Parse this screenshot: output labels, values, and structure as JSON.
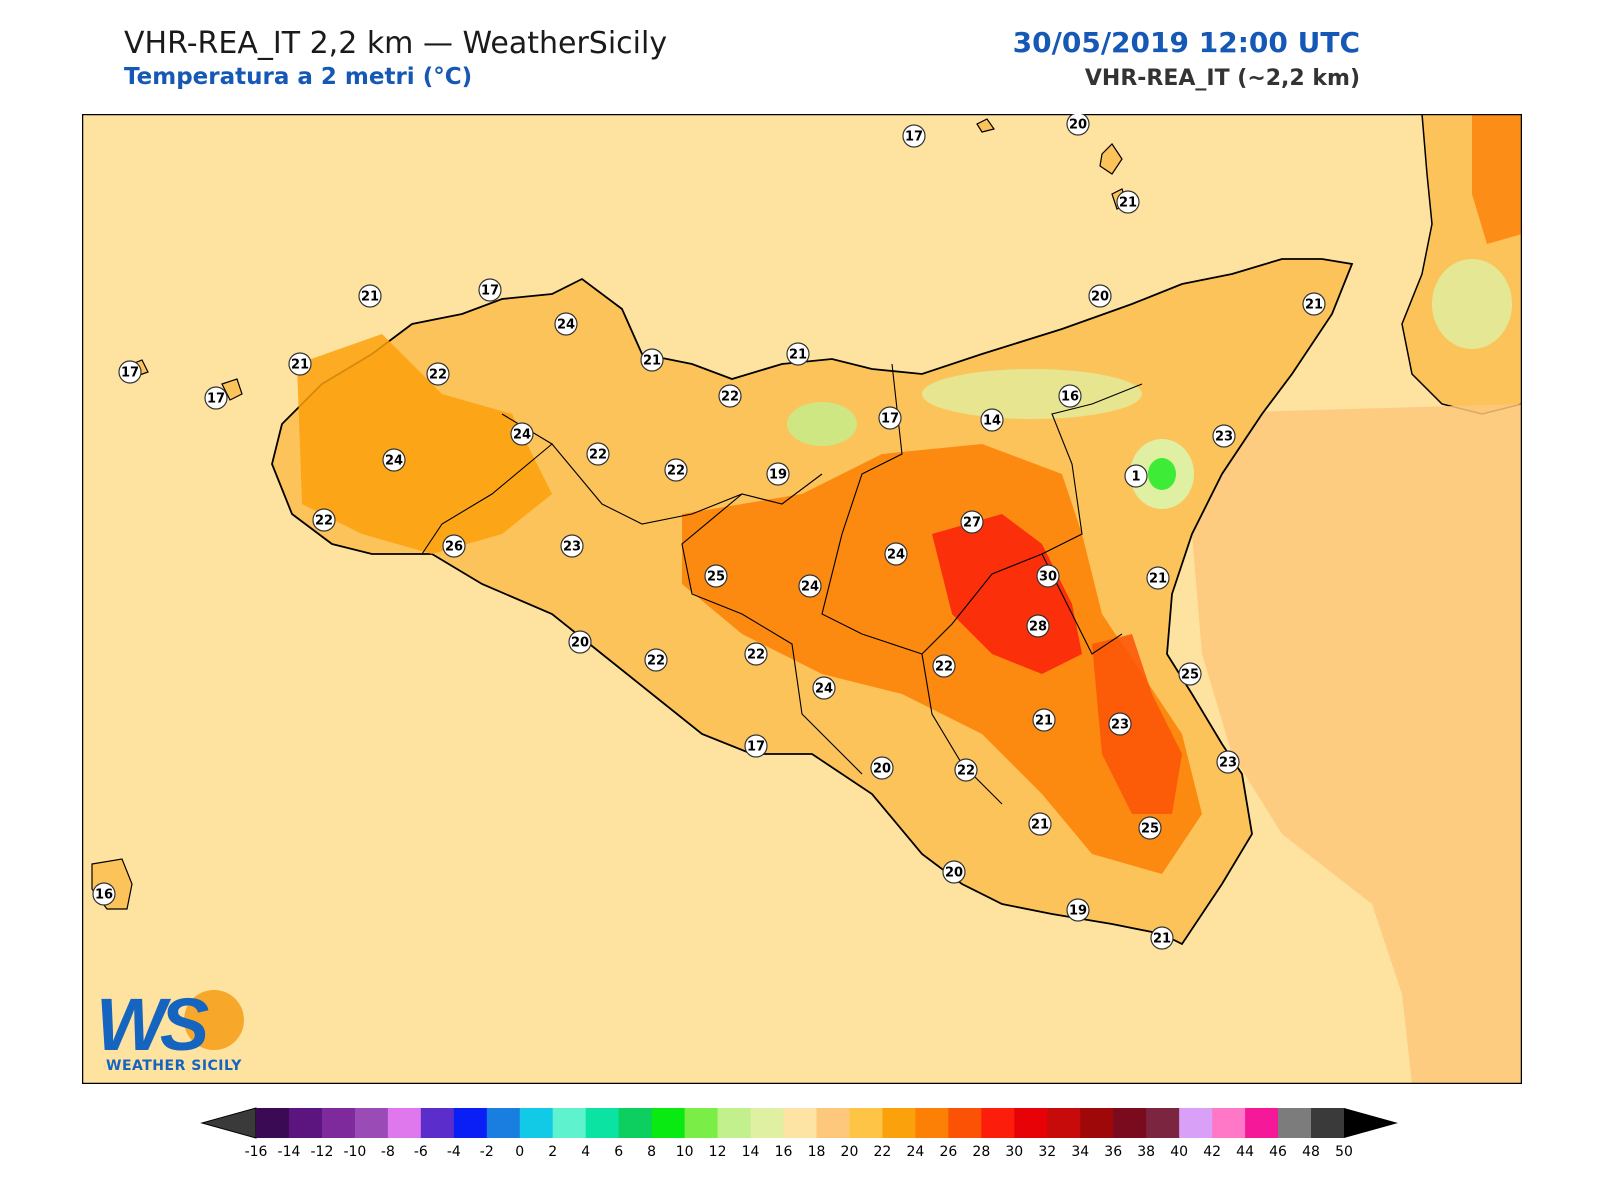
{
  "header": {
    "title": "VHR-REA_IT 2,2 km — WeatherSicily",
    "subtitle": "Temperatura a 2 metri (°C)",
    "datetime": "30/05/2019 12:00 UTC",
    "model": "VHR-REA_IT (~2,2 km)"
  },
  "logo": {
    "text": "WEATHER SICILY",
    "letters": "WS"
  },
  "colorbar": {
    "ticks": [
      "-16",
      "-14",
      "-12",
      "-10",
      "-8",
      "-6",
      "-4",
      "-2",
      "0",
      "2",
      "4",
      "6",
      "8",
      "10",
      "12",
      "14",
      "16",
      "18",
      "20",
      "22",
      "24",
      "26",
      "28",
      "30",
      "32",
      "34",
      "36",
      "38",
      "40",
      "42",
      "44",
      "46",
      "48",
      "50"
    ],
    "colors": [
      "#3b0a55",
      "#5c147f",
      "#7e2a9c",
      "#9b4bb6",
      "#df78ec",
      "#5b2ecb",
      "#0a1ff5",
      "#1a7ee0",
      "#12c9e6",
      "#5ff2cf",
      "#0be3a3",
      "#0ccf5f",
      "#08ea11",
      "#7aee46",
      "#c2f08c",
      "#dff0a2",
      "#fde3a4",
      "#fdc87b",
      "#fdc446",
      "#fba10c",
      "#fb8005",
      "#fc5206",
      "#fc1e0a",
      "#e60207",
      "#c70a0a",
      "#9f0808",
      "#7a0b1e",
      "#7b2540",
      "#d8a1f7",
      "#ff78c8",
      "#f5199a",
      "#7c7c7c",
      "#3a3a3a"
    ],
    "under_color": "#3a3a3a",
    "over_color": "#000000"
  },
  "map": {
    "sea_color": "#fee29f",
    "land_color": "#fdc35b",
    "points": [
      {
        "v": "17"
      },
      {
        "v": "20"
      },
      {
        "v": "21"
      },
      {
        "v": "21"
      },
      {
        "v": "17"
      },
      {
        "v": "24"
      },
      {
        "v": "20"
      },
      {
        "v": "21"
      },
      {
        "v": "17"
      },
      {
        "v": "21"
      },
      {
        "v": "17"
      },
      {
        "v": "22"
      },
      {
        "v": "21"
      },
      {
        "v": "21"
      },
      {
        "v": "22"
      },
      {
        "v": "16"
      },
      {
        "v": "24"
      },
      {
        "v": "24"
      },
      {
        "v": "22"
      },
      {
        "v": "22"
      },
      {
        "v": "19"
      },
      {
        "v": "17"
      },
      {
        "v": "14"
      },
      {
        "v": "23"
      },
      {
        "v": "1"
      },
      {
        "v": "22"
      },
      {
        "v": "26"
      },
      {
        "v": "23"
      },
      {
        "v": "27"
      },
      {
        "v": "24"
      },
      {
        "v": "25"
      },
      {
        "v": "24"
      },
      {
        "v": "30"
      },
      {
        "v": "21"
      },
      {
        "v": "28"
      },
      {
        "v": "20"
      },
      {
        "v": "22"
      },
      {
        "v": "22"
      },
      {
        "v": "22"
      },
      {
        "v": "25"
      },
      {
        "v": "24"
      },
      {
        "v": "21"
      },
      {
        "v": "23"
      },
      {
        "v": "17"
      },
      {
        "v": "20"
      },
      {
        "v": "22"
      },
      {
        "v": "23"
      },
      {
        "v": "21"
      },
      {
        "v": "25"
      },
      {
        "v": "16"
      },
      {
        "v": "20"
      },
      {
        "v": "19"
      },
      {
        "v": "21"
      }
    ]
  }
}
